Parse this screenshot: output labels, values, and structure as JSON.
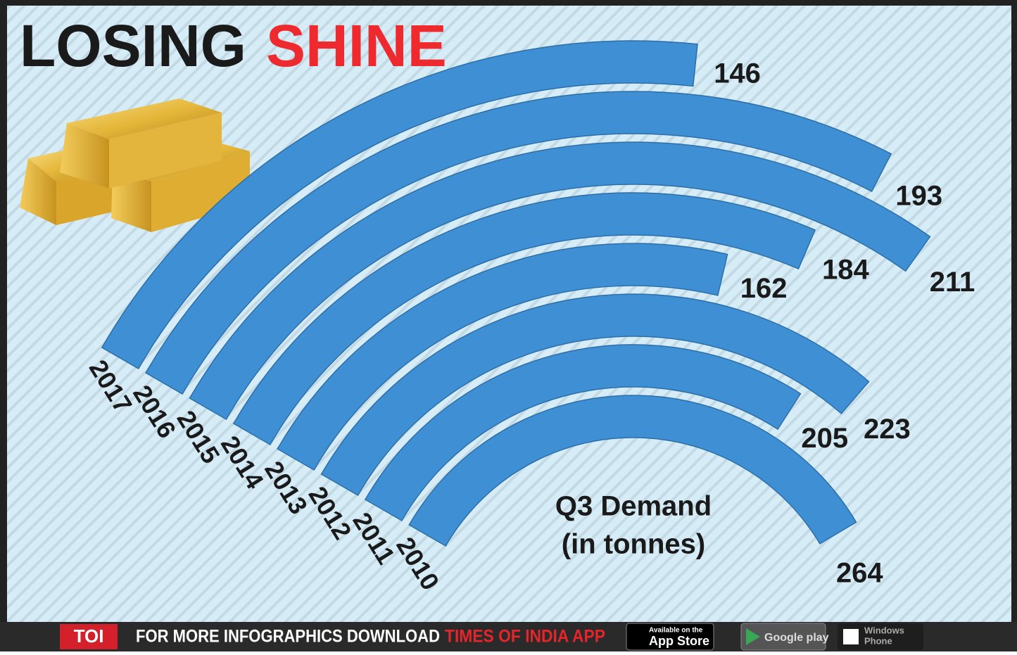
{
  "chart_data": {
    "type": "radial-bar",
    "title": [
      "LOSING",
      "SHINE"
    ],
    "annotation": [
      "Q3 Demand",
      "(in tonnes)"
    ],
    "categories": [
      "2017",
      "2016",
      "2015",
      "2014",
      "2013",
      "2012",
      "2011",
      "2010"
    ],
    "values": [
      146,
      193,
      211,
      184,
      162,
      223,
      205,
      264
    ],
    "color": "#3f8fd4"
  },
  "footer": {
    "logo": "TOI",
    "text": "FOR MORE INFOGRAPHICS DOWNLOAD",
    "highlight": "TIMES OF INDIA APP",
    "app_store": [
      "Available on the",
      "App Store"
    ],
    "google_play": "Google play",
    "windows": [
      "Windows",
      "Phone"
    ]
  }
}
